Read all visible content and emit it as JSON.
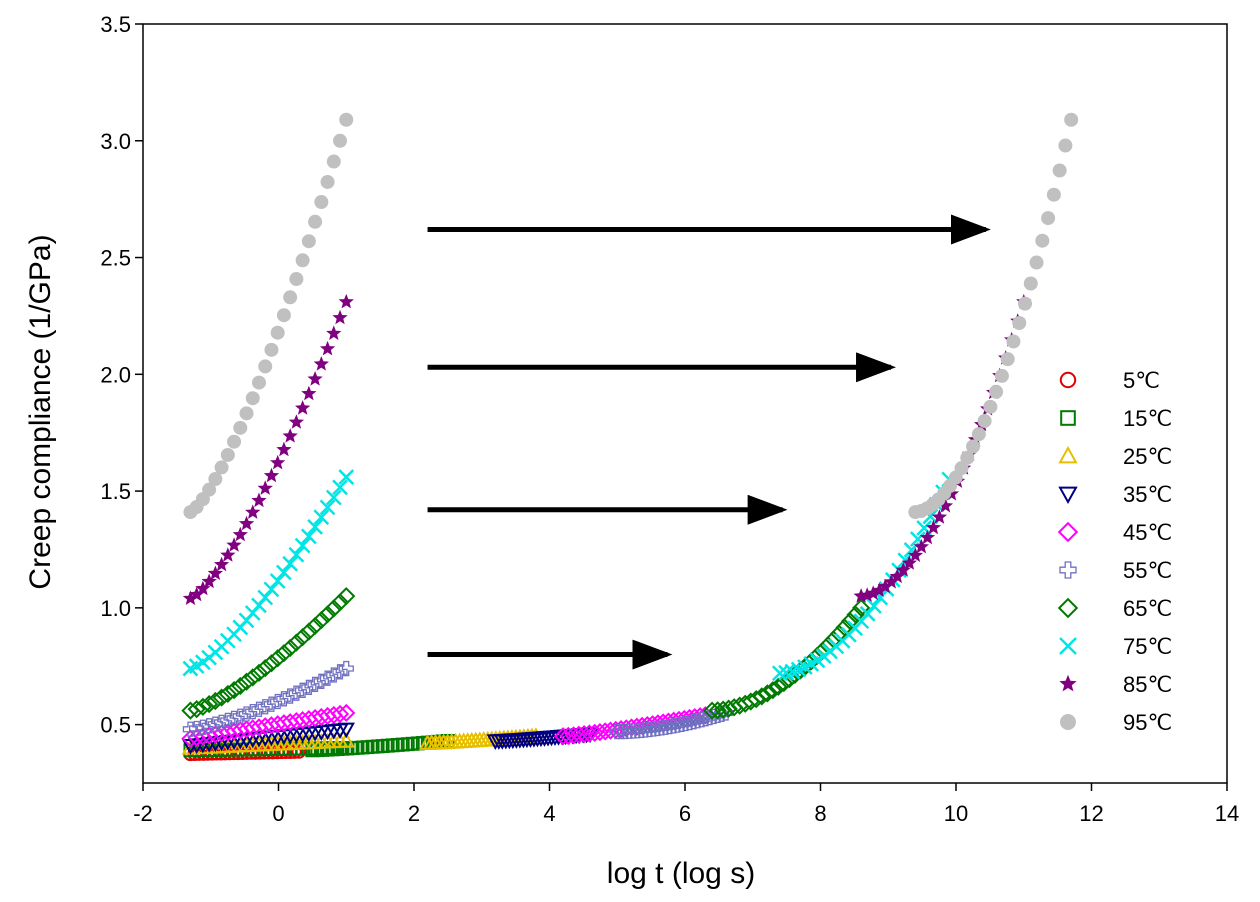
{
  "chart_data": {
    "type": "scatter",
    "title": "",
    "xlabel": "log t (log s)",
    "ylabel": "Creep  compliance (1/GPa)",
    "xlim": [
      -2,
      14
    ],
    "ylim": [
      0.25,
      3.5
    ],
    "xticks": [
      -2,
      0,
      2,
      4,
      6,
      8,
      10,
      12,
      14
    ],
    "xtick_labels": [
      "-2",
      "0",
      "2",
      "4",
      "6",
      "8",
      "10",
      "12",
      "14"
    ],
    "yticks": [
      0.5,
      1.0,
      1.5,
      2.0,
      2.5,
      3.0,
      3.5
    ],
    "ytick_labels": [
      "0.5",
      "1.0",
      "1.5",
      "2.0",
      "2.5",
      "3.0",
      "3.5"
    ],
    "legend_position": "right",
    "series": [
      {
        "name": "5℃",
        "marker": "circle-open",
        "color": "#e00000",
        "raw_x_range": [
          -1.3,
          0.3
        ],
        "raw_y": [
          0.375,
          0.385
        ]
      },
      {
        "name": "15℃",
        "marker": "square-open",
        "color": "#007a00",
        "raw_x_range": [
          -1.3,
          1.0
        ],
        "raw_y": [
          0.39,
          0.4
        ],
        "shifted_x_range": [
          0.5,
          2.5
        ],
        "shifted_y": [
          0.39,
          0.43
        ]
      },
      {
        "name": "25℃",
        "marker": "triangle-up-open",
        "color": "#e6c000",
        "raw_x_range": [
          -1.3,
          1.0
        ],
        "raw_y": [
          0.4,
          0.43
        ],
        "shifted_x_range": [
          2.2,
          3.8
        ],
        "shifted_y": [
          0.42,
          0.45
        ]
      },
      {
        "name": "35℃",
        "marker": "triangle-down-open",
        "color": "#000080",
        "raw_x_range": [
          -1.3,
          1.0
        ],
        "raw_y": [
          0.41,
          0.48
        ],
        "shifted_x_range": [
          3.2,
          4.6
        ],
        "shifted_y": [
          0.43,
          0.46
        ]
      },
      {
        "name": "45℃",
        "marker": "diamond-open",
        "color": "#ff00ff",
        "raw_x_range": [
          -1.3,
          1.0
        ],
        "raw_y": [
          0.44,
          0.55
        ],
        "shifted_x_range": [
          4.2,
          6.3
        ],
        "shifted_y": [
          0.45,
          0.54
        ]
      },
      {
        "name": "55℃",
        "marker": "plus-open",
        "color": "#7070c0",
        "raw_x_range": [
          -1.3,
          1.0
        ],
        "raw_y": [
          0.48,
          0.74
        ],
        "shifted_x_range": [
          5.0,
          6.6
        ],
        "shifted_y": [
          0.47,
          0.55
        ]
      },
      {
        "name": "65℃",
        "marker": "diamond-open",
        "color": "#007a00",
        "raw_x_range": [
          -1.3,
          1.0
        ],
        "raw_y": [
          0.56,
          1.05
        ],
        "shifted_x_range": [
          6.4,
          8.6
        ],
        "shifted_y": [
          0.56,
          1.0
        ]
      },
      {
        "name": "75℃",
        "marker": "x",
        "color": "#00e5e5",
        "raw_x_range": [
          -1.3,
          1.0
        ],
        "raw_y": [
          0.74,
          1.56
        ],
        "shifted_x_range": [
          7.4,
          9.9
        ],
        "shifted_y": [
          0.72,
          1.55
        ]
      },
      {
        "name": "85℃",
        "marker": "star-filled",
        "color": "#800080",
        "raw_x_range": [
          -1.3,
          1.0
        ],
        "raw_y": [
          1.04,
          2.31
        ],
        "shifted_x_range": [
          8.6,
          11.0
        ],
        "shifted_y": [
          1.05,
          2.31
        ]
      },
      {
        "name": "95℃",
        "marker": "circle-filled",
        "color": "#c0c0c0",
        "raw_x_range": [
          -1.3,
          1.0
        ],
        "raw_y": [
          1.41,
          3.09
        ],
        "shifted_x_range": [
          9.4,
          11.7
        ],
        "shifted_y": [
          1.41,
          3.09
        ]
      }
    ],
    "annotations": [
      {
        "type": "arrow",
        "x_start": 2.2,
        "x_end": 10.5,
        "y": 2.62
      },
      {
        "type": "arrow",
        "x_start": 2.2,
        "x_end": 9.1,
        "y": 2.03
      },
      {
        "type": "arrow",
        "x_start": 2.2,
        "x_end": 7.5,
        "y": 1.42
      },
      {
        "type": "arrow",
        "x_start": 2.2,
        "x_end": 5.8,
        "y": 0.8
      }
    ]
  }
}
